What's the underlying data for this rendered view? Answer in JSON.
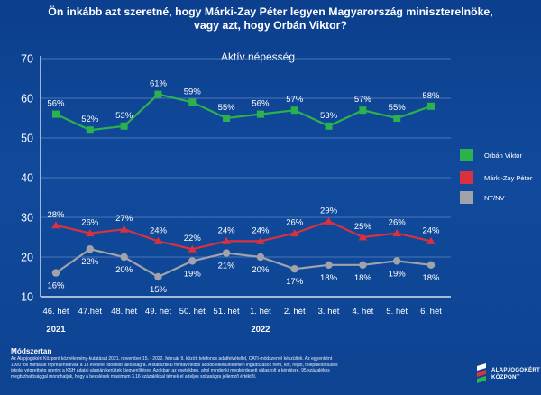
{
  "title_lines": [
    "Ön inkább azt szeretné, hogy Márki-Zay Péter legyen Magyarország miniszterelnöke,",
    "vagy azt, hogy Orbán Viktor?"
  ],
  "method": {
    "heading": "Módszertan",
    "lines": [
      "Az Alapjogokért Központ közvélemény-kutatását 2021. november 15. - 2022. február 9. között telefonos adatfelvétellel, CATI-módszerrel készültek. Az egyenként",
      "1000 fős mintákat reprezentatívak a 18 évesnél idősebb lakosságra. A statisztikai mintavételből adódó elkerülhetetlen ingadozások nem, kor, régió, településtípusés",
      "iskolai végzettség szerint a KSH adatai alapján kerültek kiegyenlítésre. Azokban az esetekben, ahol mindenki megkérdezett válaszolt a kérdésre, 95 százalékos",
      "megbízhatósággal mondhatjuk, hogy a becslések maximum 3.16 százalékkal térnek el a teljes sokaságra jellemző értéktől."
    ]
  },
  "logo": {
    "line1": "ALAPJOGOKÉRT",
    "line2": "KÖZPONT"
  },
  "colors": {
    "orban": "#2bb24c",
    "mzp": "#d9313e",
    "ntnv": "#a0a3a9",
    "grid": "#5e86c2",
    "axis": "#ffffff"
  },
  "chart_data": {
    "type": "line",
    "title": "Aktív népesség",
    "categories": [
      "46. hét",
      "47.hét",
      "48. hét",
      "49. hét",
      "50. hét",
      "51. hét",
      "1. hét",
      "2. hét",
      "3. hét",
      "4. hét",
      "5. hét",
      "6. hét"
    ],
    "year_labels": [
      {
        "text": "2021",
        "category_index": 0
      },
      {
        "text": "2022",
        "category_index": 6
      }
    ],
    "ylim": [
      10,
      70
    ],
    "yticks": [
      10,
      20,
      30,
      40,
      50,
      60,
      70
    ],
    "grid": true,
    "legend_position": "right",
    "series": [
      {
        "name": "Orbán Viktor",
        "color_key": "orban",
        "marker": "square",
        "values": [
          56,
          52,
          53,
          61,
          59,
          55,
          56,
          57,
          53,
          57,
          55,
          58
        ]
      },
      {
        "name": "Márki-Zay Péter",
        "color_key": "mzp",
        "marker": "triangle",
        "values": [
          28,
          26,
          27,
          24,
          22,
          24,
          24,
          26,
          29,
          25,
          26,
          24
        ]
      },
      {
        "name": "NT/NV",
        "color_key": "ntnv",
        "marker": "circle",
        "values": [
          16,
          22,
          20,
          15,
          19,
          21,
          20,
          17,
          18,
          18,
          19,
          18
        ]
      }
    ]
  }
}
